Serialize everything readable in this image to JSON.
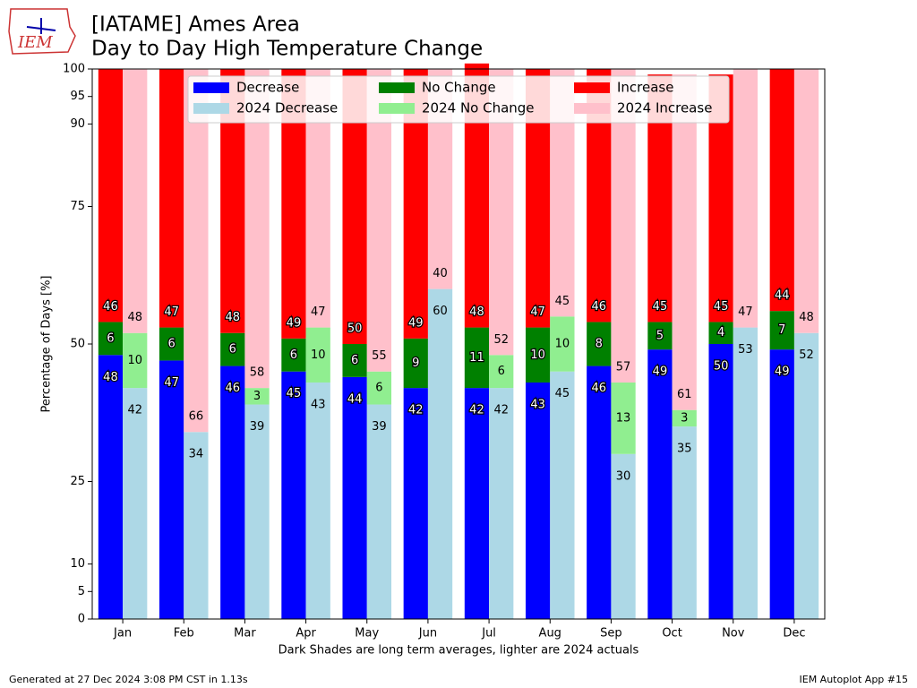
{
  "logo": "IEM",
  "footer_left": "Generated at 27 Dec 2024 3:08 PM CST in 1.13s",
  "footer_right": "IEM Autoplot App #15",
  "chart_data": {
    "type": "bar",
    "title": "[IATAME] Ames Area",
    "subtitle": "Day to Day High Temperature Change",
    "y_label": "Percentage of Days [%]",
    "x_label": "Dark Shades are long term averages, lighter are 2024 actuals",
    "categories": [
      "Jan",
      "Feb",
      "Mar",
      "Apr",
      "May",
      "Jun",
      "Jul",
      "Aug",
      "Sep",
      "Oct",
      "Nov",
      "Dec"
    ],
    "series": [
      {
        "name": "Decrease",
        "color": "#0000ff",
        "values": [
          48,
          47,
          46,
          45,
          44,
          42,
          42,
          43,
          46,
          49,
          50,
          49
        ]
      },
      {
        "name": "2024 Decrease",
        "color": "#add8e6",
        "values": [
          42,
          34,
          39,
          43,
          39,
          60,
          42,
          45,
          30,
          35,
          53,
          52
        ]
      },
      {
        "name": "No Change",
        "color": "#008000",
        "values": [
          6,
          6,
          6,
          6,
          6,
          9,
          11,
          10,
          8,
          5,
          4,
          7
        ]
      },
      {
        "name": "2024 No Change",
        "color": "#90ee90",
        "values": [
          10,
          0,
          3,
          10,
          6,
          0,
          6,
          10,
          13,
          3,
          0,
          0
        ]
      },
      {
        "name": "Increase",
        "color": "#ff0000",
        "values": [
          46,
          47,
          48,
          49,
          50,
          49,
          48,
          47,
          46,
          45,
          45,
          44
        ]
      },
      {
        "name": "2024 Increase",
        "color": "#ffc0cb",
        "values": [
          48,
          66,
          58,
          47,
          55,
          40,
          52,
          45,
          57,
          61,
          47,
          48
        ]
      }
    ],
    "ylim": [
      0,
      100
    ],
    "yticks": [
      0,
      5,
      10,
      25,
      50,
      75,
      90,
      95,
      100
    ],
    "legend": "upper center"
  }
}
